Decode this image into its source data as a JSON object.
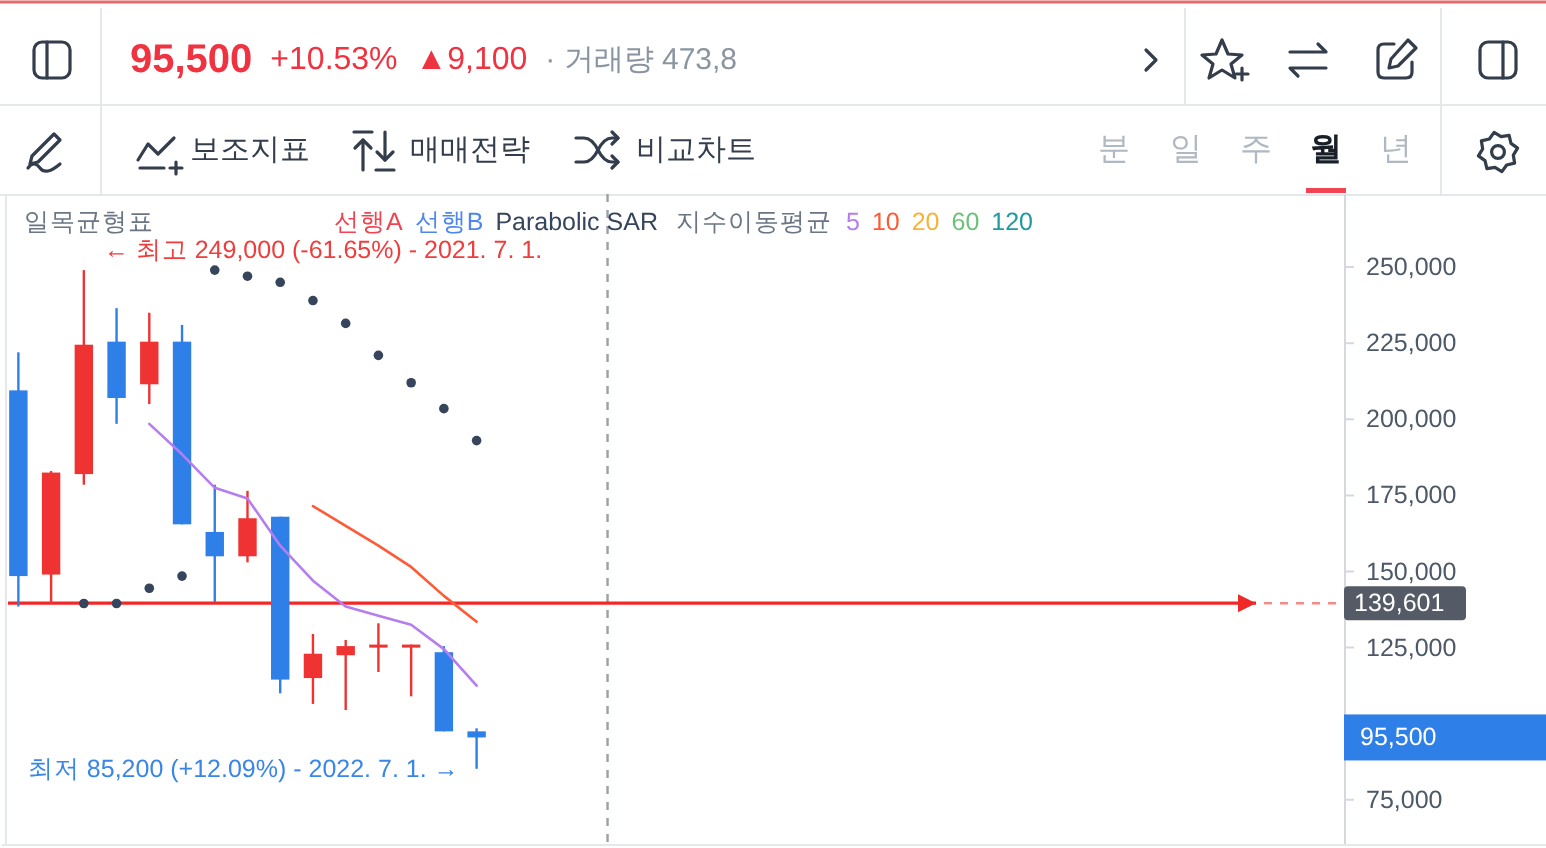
{
  "chart_data": {
    "type": "candlestick",
    "categories": [
      null,
      null,
      null,
      null,
      null,
      null,
      null,
      null,
      null,
      null,
      null,
      null,
      null,
      null,
      null,
      null,
      null,
      null,
      null,
      null,
      null,
      null,
      null,
      null,
      null,
      null,
      null,
      null,
      null,
      null,
      null,
      null,
      null,
      null,
      null,
      null,
      null,
      null,
      null,
      null,
      null
    ],
    "ohlc": [
      [
        209500,
        222000,
        138500,
        148500
      ],
      [
        149000,
        183000,
        139500,
        182500
      ],
      [
        182000,
        249000,
        178500,
        224500
      ],
      [
        225500,
        236500,
        198500,
        207000
      ],
      [
        211500,
        235000,
        205000,
        225500
      ],
      [
        225500,
        231000,
        165500,
        165500
      ],
      [
        163000,
        178500,
        140000,
        155000
      ],
      [
        155000,
        176500,
        153000,
        167500
      ],
      [
        168000,
        168000,
        110000,
        114500
      ],
      [
        115000,
        129500,
        106500,
        123000
      ],
      [
        122500,
        127500,
        104500,
        125500
      ],
      [
        125000,
        133000,
        117000,
        126000
      ],
      [
        125000,
        126000,
        109000,
        126000
      ],
      [
        123500,
        125500,
        97500,
        97500
      ],
      [
        97500,
        98500,
        85200,
        95500
      ],
      null,
      null,
      null,
      null,
      null,
      null,
      null,
      null,
      null,
      null,
      null,
      null,
      null,
      null,
      null,
      null,
      null,
      null,
      null,
      null,
      null,
      null,
      null,
      null,
      null,
      null
    ],
    "colors": [
      "#2f7fe8",
      "#ef3333",
      "#ef3333",
      "#2f7fe8",
      "#ef3333",
      "#2f7fe8",
      "#2f7fe8",
      "#ef3333",
      "#2f7fe8",
      "#ef3333",
      "#ef3333",
      "#ef3333",
      "#ef3333",
      "#2f7fe8",
      "#2f7fe8",
      null,
      null,
      null,
      null,
      null,
      null,
      null,
      null,
      null,
      null,
      null,
      null,
      null,
      null,
      null,
      null,
      null,
      null,
      null,
      null,
      null,
      null,
      null,
      null,
      null,
      null
    ],
    "series": [
      {
        "name": "선행A",
        "color": "#f04452",
        "type": "line",
        "values": [
          null,
          null,
          null,
          null,
          null,
          null,
          null,
          null,
          null,
          null,
          null,
          null,
          null,
          null,
          null,
          null,
          null,
          null,
          null,
          null,
          null,
          null,
          null,
          null,
          null,
          null,
          null,
          null,
          null,
          null,
          null,
          null,
          null,
          null,
          null,
          null,
          null,
          null,
          null,
          null,
          null
        ]
      },
      {
        "name": "선행B",
        "color": "#4f86f0",
        "type": "line",
        "values": [
          null,
          null,
          null,
          null,
          null,
          null,
          null,
          null,
          null,
          null,
          null,
          null,
          null,
          null,
          null,
          null,
          null,
          null,
          null,
          null,
          null,
          null,
          null,
          null,
          null,
          null,
          null,
          null,
          null,
          null,
          null,
          null,
          null,
          null,
          null,
          null,
          null,
          null,
          null,
          null,
          null
        ]
      },
      {
        "name": "Parabolic SAR",
        "color": "#36455c",
        "type": "scatter",
        "marker": "circle",
        "values": [
          null,
          null,
          139500,
          139500,
          144500,
          148500,
          249000,
          247000,
          245000,
          239000,
          231500,
          221000,
          212000,
          203500,
          193000,
          null,
          null,
          null,
          null,
          null,
          null,
          null,
          null,
          null,
          null,
          null,
          null,
          null,
          null,
          null,
          null,
          null,
          null,
          null,
          null,
          null,
          null,
          null,
          null,
          null,
          null
        ]
      },
      {
        "name": "5",
        "color": "#b57ef0",
        "type": "line",
        "values": [
          null,
          null,
          null,
          null,
          198500,
          188500,
          177500,
          174000,
          158500,
          147000,
          138500,
          135500,
          132500,
          124500,
          112500,
          null,
          null,
          null,
          null,
          null,
          null,
          null,
          null,
          null,
          null,
          null,
          null,
          null,
          null,
          null,
          null,
          null,
          null,
          null,
          null,
          null,
          null,
          null,
          null,
          null,
          null
        ]
      },
      {
        "name": "10",
        "color": "#ff5a36",
        "type": "line",
        "values": [
          null,
          null,
          null,
          null,
          null,
          null,
          null,
          null,
          null,
          171500,
          165000,
          158500,
          151500,
          142000,
          133500,
          null,
          null,
          null,
          null,
          null,
          null,
          null,
          null,
          null,
          null,
          null,
          null,
          null,
          null,
          null,
          null,
          null,
          null,
          null,
          null,
          null,
          null,
          null,
          null,
          null,
          null
        ]
      },
      {
        "name": "20",
        "color": "#f7b23b",
        "type": "line",
        "values": [
          null,
          null,
          null,
          null,
          null,
          null,
          null,
          null,
          null,
          null,
          null,
          null,
          null,
          null,
          null,
          null,
          null,
          null,
          null,
          null,
          null,
          null,
          null,
          null,
          null,
          null,
          null,
          null,
          null,
          null,
          null,
          null,
          null,
          null,
          null,
          null,
          null,
          null,
          null,
          null,
          null
        ]
      },
      {
        "name": "60",
        "color": "#6cc17a",
        "type": "line",
        "values": [
          null,
          null,
          null,
          null,
          null,
          null,
          null,
          null,
          null,
          null,
          null,
          null,
          null,
          null,
          null,
          null,
          null,
          null,
          null,
          null,
          null,
          null,
          null,
          null,
          null,
          null,
          null,
          null,
          null,
          null,
          null,
          null,
          null,
          null,
          null,
          null,
          null,
          null,
          null,
          null,
          null
        ]
      },
      {
        "name": "120",
        "color": "#1f9aa0",
        "type": "line",
        "values": [
          null,
          null,
          null,
          null,
          null,
          null,
          null,
          null,
          null,
          null,
          null,
          null,
          null,
          null,
          null,
          null,
          null,
          null,
          null,
          null,
          null,
          null,
          null,
          null,
          null,
          null,
          null,
          null,
          null,
          null,
          null,
          null,
          null,
          null,
          null,
          null,
          null,
          null,
          null,
          null,
          null
        ]
      }
    ],
    "ylim": [
      60500,
      274000
    ],
    "yticks": [
      {
        "value": 75000,
        "label": "75,000"
      },
      {
        "value": 125000,
        "label": "125,000"
      },
      {
        "value": 150000,
        "label": "150,000"
      },
      {
        "value": 175000,
        "label": "175,000"
      },
      {
        "value": 200000,
        "label": "200,000"
      },
      {
        "value": 225000,
        "label": "225,000"
      },
      {
        "value": 250000,
        "label": "250,000"
      }
    ],
    "tick_labels": "y",
    "legend": "top",
    "ref_lines": [
      {
        "axis": "y",
        "value": 139601,
        "label": "139,601",
        "color": "#f02828"
      }
    ],
    "annotations": [
      "일목균형표",
      "지수이동평균",
      "95,500",
      "+10.53%",
      "▲9,100",
      "· 거래량 473,8",
      "보조지표",
      "매매전략",
      "비교차트",
      "분",
      "일",
      "주",
      "월",
      "년",
      "← 최고 249,000 (-61.65%) - 2021. 7. 1.",
      "최저 85,200 (+12.09%) - 2022. 7. 1. →",
      "95,500"
    ]
  }
}
